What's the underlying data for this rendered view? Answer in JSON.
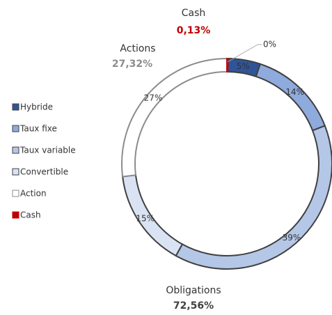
{
  "chart_data": {
    "type": "donut",
    "series": [
      {
        "name": "Hybride",
        "color": "#2f5597",
        "value": 5,
        "value_label": "5%"
      },
      {
        "name": "Taux fixe",
        "color": "#8faadc",
        "value": 14,
        "value_label": "14%"
      },
      {
        "name": "Taux variable",
        "color": "#b4c7e7",
        "value": 39,
        "value_label": "39%"
      },
      {
        "name": "Convertible",
        "color": "#dae3f3",
        "value": 15,
        "value_label": "15%"
      },
      {
        "name": "Action",
        "color": "#ffffff",
        "value": 27,
        "value_label": "27%"
      },
      {
        "name": "Cash",
        "color": "#c00000",
        "value": 0.13,
        "value_label": "0%"
      }
    ],
    "groups": [
      {
        "name": "Cash",
        "share": "0,13%",
        "color": "#c00000"
      },
      {
        "name": "Actions",
        "share": "27,32%",
        "color": "#8c8c8c"
      },
      {
        "name": "Obligations",
        "share": "72,56%",
        "color": "#404040"
      }
    ]
  }
}
